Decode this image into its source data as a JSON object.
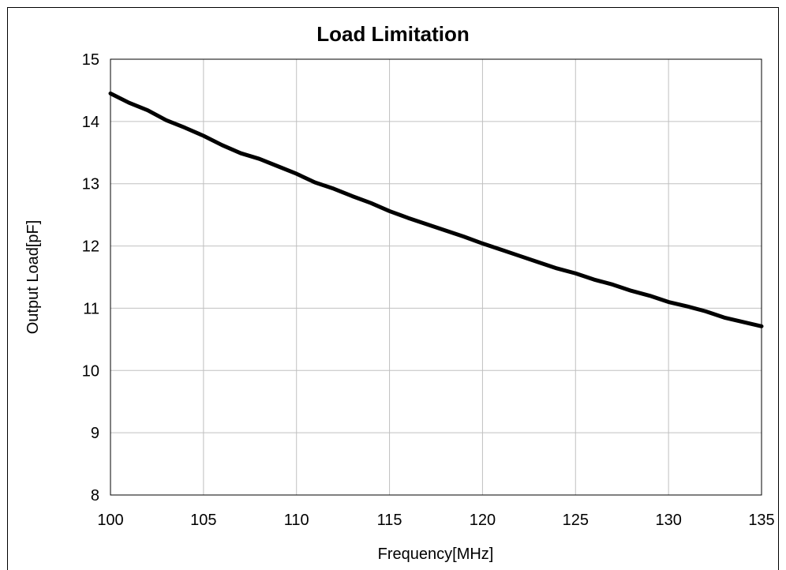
{
  "chart_data": {
    "type": "line",
    "title": "Load Limitation",
    "xlabel": "Frequency[MHz]",
    "ylabel": "Output Load[pF]",
    "xlim": [
      100,
      135
    ],
    "ylim": [
      8,
      15
    ],
    "x_ticks": [
      100,
      105,
      110,
      115,
      120,
      125,
      130,
      135
    ],
    "y_ticks": [
      8,
      9,
      10,
      11,
      12,
      13,
      14,
      15
    ],
    "grid": true,
    "line_color": "#000000",
    "series": [
      {
        "x": [
          100,
          101,
          102,
          103,
          104,
          105,
          106,
          107,
          108,
          109,
          110,
          111,
          112,
          113,
          114,
          115,
          116,
          117,
          118,
          119,
          120,
          121,
          122,
          123,
          124,
          125,
          126,
          127,
          128,
          129,
          130,
          131,
          132,
          133,
          134,
          135
        ],
        "y": [
          14.45,
          14.3,
          14.18,
          14.02,
          13.9,
          13.77,
          13.62,
          13.49,
          13.4,
          13.28,
          13.16,
          13.02,
          12.92,
          12.8,
          12.69,
          12.56,
          12.45,
          12.35,
          12.25,
          12.15,
          12.04,
          11.94,
          11.84,
          11.74,
          11.64,
          11.56,
          11.46,
          11.38,
          11.28,
          11.2,
          11.1,
          11.03,
          10.95,
          10.85,
          10.78,
          10.71
        ]
      }
    ]
  }
}
